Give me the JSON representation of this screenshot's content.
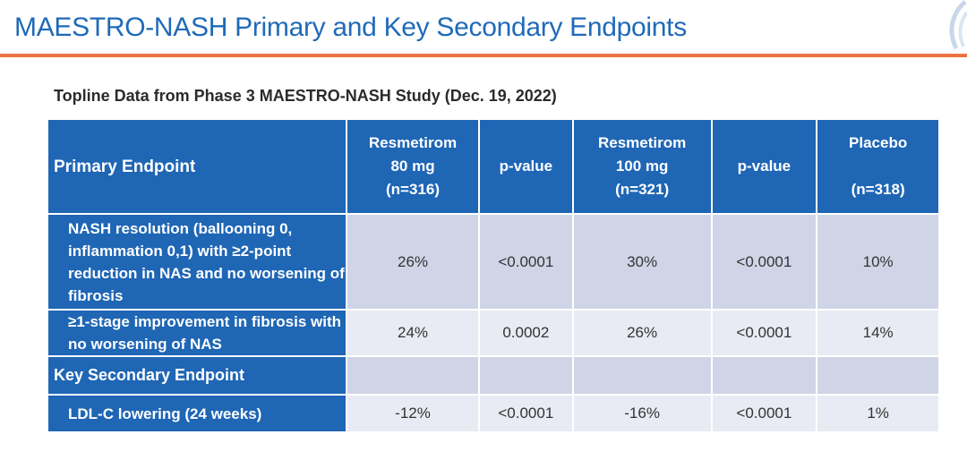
{
  "slide": {
    "title": "MAESTRO-NASH Primary and Key Secondary Endpoints",
    "subtitle": "Topline Data from Phase 3 MAESTRO-NASH Study (Dec. 19, 2022)",
    "accent_color": "#ee7341",
    "header_color": "#1f66b5"
  },
  "table": {
    "headers": [
      "Primary Endpoint",
      "Resmetirom 80 mg (n=316)",
      "p-value",
      "Resmetirom 100 mg (n=321)",
      "p-value",
      "Placebo (n=318)"
    ],
    "header_lines": {
      "c1": [
        "Resmetirom",
        "80 mg",
        "(n=316)"
      ],
      "c3": [
        "Resmetirom",
        "100 mg",
        "(n=321)"
      ],
      "c5": [
        "Placebo",
        "(n=318)"
      ]
    },
    "rows": [
      {
        "label": "NASH resolution (ballooning 0, inflammation 0,1) with ≥2-point reduction in NAS and no worsening of fibrosis",
        "values": [
          "26%",
          "<0.0001",
          "30%",
          "<0.0001",
          "10%"
        ]
      },
      {
        "label": "≥1-stage improvement in fibrosis with no worsening of NAS",
        "values": [
          "24%",
          "0.0002",
          "26%",
          "<0.0001",
          "14%"
        ]
      },
      {
        "label": "Key Secondary Endpoint",
        "values": [
          "",
          "",
          "",
          "",
          ""
        ]
      },
      {
        "label": "LDL-C lowering (24 weeks)",
        "values": [
          "-12%",
          "<0.0001",
          "-16%",
          "<0.0001",
          "1%"
        ]
      }
    ]
  }
}
